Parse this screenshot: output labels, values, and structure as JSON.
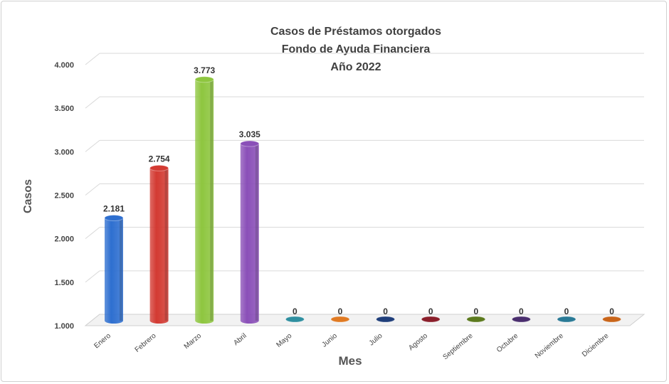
{
  "chart_data": {
    "type": "bar",
    "title_lines": [
      "Casos de Préstamos otorgados",
      "Fondo de Ayuda Financiera",
      "Año 2022"
    ],
    "xlabel": "Mes",
    "ylabel": "Casos",
    "categories": [
      "Enero",
      "Febrero",
      "Marzo",
      "Abril",
      "Mayo",
      "Junio",
      "Julio",
      "Agosto",
      "Septiembre",
      "Octubre",
      "Noviembre",
      "Diciembre"
    ],
    "values": [
      2181,
      2754,
      3773,
      3035,
      0,
      0,
      0,
      0,
      0,
      0,
      0,
      0
    ],
    "value_labels": [
      "2.181",
      "2.754",
      "3.773",
      "3.035",
      "0",
      "0",
      "0",
      "0",
      "0",
      "0",
      "0",
      "0"
    ],
    "colors": [
      "#2e6fd0",
      "#d33a32",
      "#8ec63f",
      "#8a4fb8",
      "#2f8fa0",
      "#e07a22",
      "#1f3e7a",
      "#8a1e2a",
      "#5c7a1e",
      "#4a2e6e",
      "#2a7a96",
      "#c9651a"
    ],
    "yticks": [
      1000,
      1500,
      2000,
      2500,
      3000,
      3500,
      4000
    ],
    "ytick_labels": [
      "1.000",
      "1.500",
      "2.000",
      "2.500",
      "3.000",
      "3.500",
      "4.000"
    ],
    "ylim": [
      1000,
      4000
    ],
    "grid": true,
    "legend": "none"
  }
}
